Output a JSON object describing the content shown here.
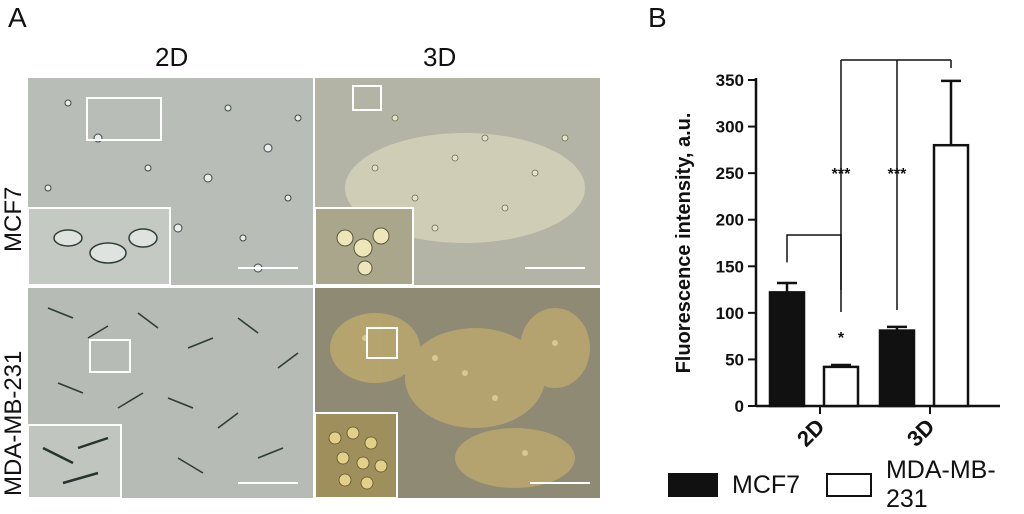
{
  "panel_a": {
    "letter": "A",
    "columns": [
      "2D",
      "3D"
    ],
    "rows": [
      "MCF7",
      "MDA-MB-231"
    ]
  },
  "panel_b": {
    "letter": "B",
    "legend": [
      {
        "label": "MCF7",
        "color": "#111111"
      },
      {
        "label": "MDA-MB-231",
        "color": "#ffffff"
      }
    ]
  },
  "chart_data": {
    "type": "bar",
    "categories": [
      "2D",
      "3D"
    ],
    "series": [
      {
        "name": "MCF7",
        "values": [
          122,
          81
        ],
        "errors": [
          10,
          4
        ],
        "color": "#111111"
      },
      {
        "name": "MDA-MB-231",
        "values": [
          42,
          280
        ],
        "errors": [
          2,
          69
        ],
        "color": "#ffffff"
      }
    ],
    "ylabel": "Fluorescence intensity, a.u.",
    "ylim": [
      0,
      350
    ],
    "yticks": [
      0,
      50,
      100,
      150,
      200,
      250,
      300,
      350
    ],
    "significance": [
      {
        "label": "*",
        "between": "MCF7 2D vs MDA-MB-231 2D"
      },
      {
        "label": "***",
        "between": "MDA-MB-231 2D vs MDA-MB-231 3D"
      },
      {
        "label": "***",
        "between": "MCF7 3D vs MDA-MB-231 3D"
      }
    ]
  }
}
